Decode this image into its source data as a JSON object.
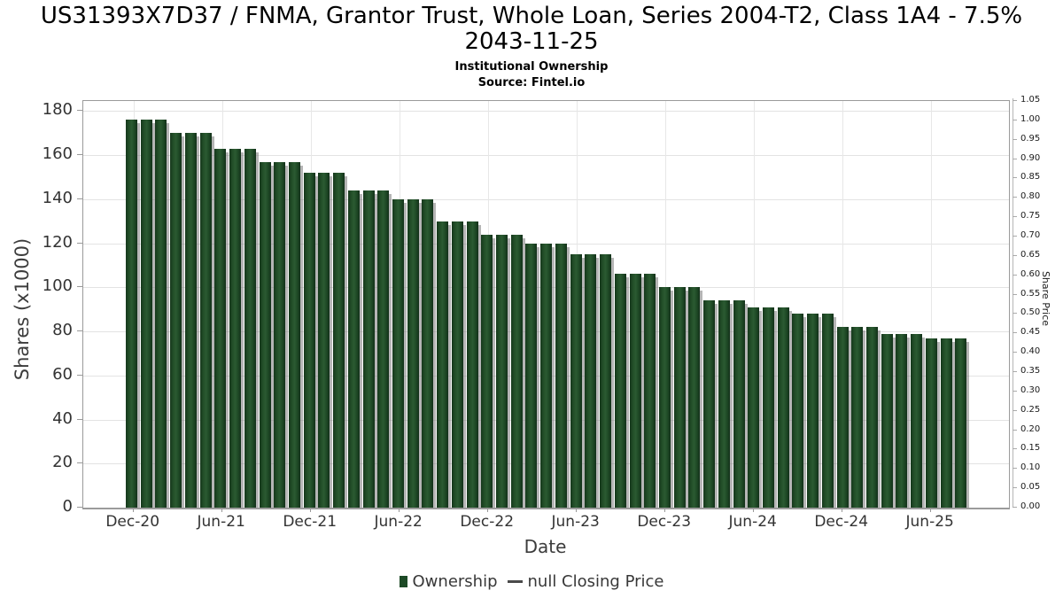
{
  "header": {
    "title": "US31393X7D37 / FNMA, Grantor Trust, Whole Loan, Series 2004-T2, Class 1A4 - 7.5% 2043-11-25",
    "subtitle": "Institutional Ownership",
    "source": "Source: Fintel.io"
  },
  "colors": {
    "bar": "#1d4a26",
    "bar_shadow": "#787878",
    "grid": "#e3e3e3",
    "plot_border": "#9b9b9b",
    "tick_text": "#333333",
    "title_text": "#000000"
  },
  "chart_data": {
    "type": "bar",
    "title": "US31393X7D37 / FNMA, Grantor Trust, Whole Loan, Series 2004-T2, Class 1A4 - 7.5% 2043-11-25",
    "subtitle": "Institutional Ownership",
    "source": "Source: Fintel.io",
    "xlabel": "Date",
    "ylabel": "Shares (x1000)",
    "y2label": "Share Price",
    "ylim": [
      0,
      184
    ],
    "y2lim": [
      0,
      1.05
    ],
    "grid": true,
    "legend_position": "bottom-center",
    "yticks": [
      0,
      20,
      40,
      60,
      80,
      100,
      120,
      140,
      160,
      180
    ],
    "y2ticks": [
      "0.00",
      "0.05",
      "0.10",
      "0.15",
      "0.20",
      "0.25",
      "0.30",
      "0.35",
      "0.40",
      "0.45",
      "0.50",
      "0.55",
      "0.60",
      "0.65",
      "0.70",
      "0.75",
      "0.80",
      "0.85",
      "0.90",
      "0.95",
      "1.00",
      "1.05"
    ],
    "xticks": [
      "Dec-20",
      "Jun-21",
      "Dec-21",
      "Jun-22",
      "Dec-22",
      "Jun-23",
      "Dec-23",
      "Jun-24",
      "Dec-24",
      "Jun-25"
    ],
    "categories": [
      "Dec-20",
      "Jan-21",
      "Feb-21",
      "Mar-21",
      "Apr-21",
      "May-21",
      "Jun-21",
      "Jul-21",
      "Aug-21",
      "Sep-21",
      "Oct-21",
      "Nov-21",
      "Dec-21",
      "Jan-22",
      "Feb-22",
      "Mar-22",
      "Apr-22",
      "May-22",
      "Jun-22",
      "Jul-22",
      "Aug-22",
      "Sep-22",
      "Oct-22",
      "Nov-22",
      "Dec-22",
      "Jan-23",
      "Feb-23",
      "Mar-23",
      "Apr-23",
      "May-23",
      "Jun-23",
      "Jul-23",
      "Aug-23",
      "Sep-23",
      "Oct-23",
      "Nov-23",
      "Dec-23",
      "Jan-24",
      "Feb-24",
      "Mar-24",
      "Apr-24",
      "May-24",
      "Jun-24",
      "Jul-24",
      "Aug-24",
      "Sep-24",
      "Oct-24",
      "Nov-24",
      "Dec-24",
      "Jan-25",
      "Feb-25",
      "Mar-25",
      "Apr-25",
      "May-25",
      "Jun-25",
      "Jul-25",
      "Aug-25"
    ],
    "series": [
      {
        "name": "Ownership",
        "values": [
          176,
          176,
          176,
          170,
          170,
          170,
          163,
          163,
          163,
          157,
          157,
          157,
          152,
          152,
          152,
          144,
          144,
          144,
          140,
          140,
          140,
          130,
          130,
          130,
          124,
          124,
          124,
          120,
          120,
          120,
          115,
          115,
          115,
          106,
          106,
          106,
          100,
          100,
          100,
          94,
          94,
          94,
          91,
          91,
          91,
          88,
          88,
          88,
          82,
          82,
          82,
          79,
          79,
          79,
          77,
          77,
          77
        ]
      },
      {
        "name": "null Closing Price",
        "values": []
      }
    ],
    "legend": [
      {
        "label": "Ownership",
        "marker": "square"
      },
      {
        "label": "null Closing Price",
        "marker": "dash"
      }
    ]
  }
}
